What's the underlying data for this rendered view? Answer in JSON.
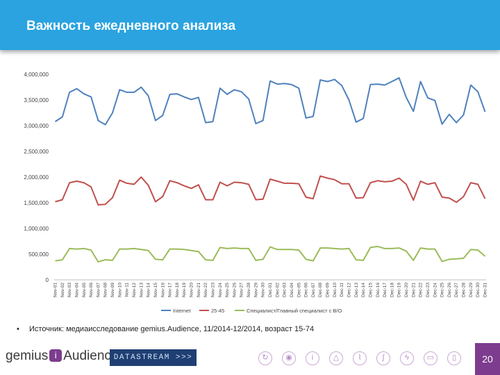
{
  "header": {
    "title": "Важность ежедневного анализа"
  },
  "chart_data": {
    "type": "line",
    "title": "",
    "xlabel": "",
    "ylabel": "",
    "ylim": [
      0,
      4000000
    ],
    "yticks": [
      0,
      500000,
      1000000,
      1500000,
      2000000,
      2500000,
      3000000,
      3500000,
      4000000
    ],
    "ytick_labels": [
      "0",
      "500,000",
      "1,000,000",
      "1,500,000",
      "2,000,000",
      "2,500,000",
      "3,000,000",
      "3,500,000",
      "4,000,000"
    ],
    "grid": false,
    "legend_position": "bottom",
    "categories": [
      "Nov-01",
      "Nov-02",
      "Nov-03",
      "Nov-04",
      "Nov-05",
      "Nov-06",
      "Nov-07",
      "Nov-08",
      "Nov-09",
      "Nov-10",
      "Nov-11",
      "Nov-12",
      "Nov-13",
      "Nov-14",
      "Nov-15",
      "Nov-16",
      "Nov-17",
      "Nov-18",
      "Nov-19",
      "Nov-20",
      "Nov-21",
      "Nov-22",
      "Nov-23",
      "Nov-24",
      "Nov-25",
      "Nov-26",
      "Nov-27",
      "Nov-28",
      "Nov-29",
      "Nov-30",
      "Dec-01",
      "Dec-02",
      "Dec-03",
      "Dec-04",
      "Dec-05",
      "Dec-06",
      "Dec-07",
      "Dec-08",
      "Dec-09",
      "Dec-10",
      "Dec-11",
      "Dec-12",
      "Dec-13",
      "Dec-14",
      "Dec-15",
      "Dec-16",
      "Dec-17",
      "Dec-18",
      "Dec-19",
      "Dec-20",
      "Dec-21",
      "Dec-22",
      "Dec-23",
      "Dec-24",
      "Dec-25",
      "Dec-26",
      "Dec-27",
      "Dec-28",
      "Dec-29",
      "Dec-30",
      "Dec-31"
    ],
    "series": [
      {
        "name": "Internet",
        "color": "#4f81bd",
        "values": [
          3080000,
          3170000,
          3650000,
          3720000,
          3620000,
          3560000,
          3100000,
          3020000,
          3250000,
          3700000,
          3650000,
          3650000,
          3750000,
          3580000,
          3100000,
          3200000,
          3610000,
          3620000,
          3560000,
          3510000,
          3550000,
          3060000,
          3080000,
          3730000,
          3610000,
          3700000,
          3660000,
          3520000,
          3040000,
          3100000,
          3870000,
          3810000,
          3820000,
          3800000,
          3730000,
          3150000,
          3180000,
          3890000,
          3860000,
          3900000,
          3780000,
          3500000,
          3070000,
          3140000,
          3800000,
          3810000,
          3790000,
          3860000,
          3930000,
          3550000,
          3280000,
          3860000,
          3540000,
          3490000,
          3030000,
          3220000,
          3060000,
          3210000,
          3790000,
          3660000,
          3270000
        ]
      },
      {
        "name": "25-45",
        "color": "#c0504d",
        "values": [
          1520000,
          1560000,
          1890000,
          1920000,
          1890000,
          1810000,
          1460000,
          1470000,
          1600000,
          1940000,
          1880000,
          1860000,
          2000000,
          1840000,
          1520000,
          1620000,
          1930000,
          1890000,
          1830000,
          1780000,
          1850000,
          1560000,
          1560000,
          1900000,
          1830000,
          1900000,
          1890000,
          1860000,
          1560000,
          1570000,
          1960000,
          1920000,
          1880000,
          1880000,
          1870000,
          1610000,
          1580000,
          2020000,
          1980000,
          1950000,
          1870000,
          1870000,
          1590000,
          1600000,
          1890000,
          1930000,
          1910000,
          1920000,
          1980000,
          1860000,
          1550000,
          1920000,
          1860000,
          1890000,
          1610000,
          1590000,
          1510000,
          1620000,
          1890000,
          1860000,
          1580000
        ]
      },
      {
        "name": "Специалист/Главный специалист с В/О",
        "color": "#9bbb59",
        "values": [
          370000,
          390000,
          610000,
          600000,
          610000,
          580000,
          350000,
          390000,
          380000,
          600000,
          600000,
          610000,
          590000,
          570000,
          400000,
          390000,
          600000,
          600000,
          590000,
          570000,
          550000,
          390000,
          380000,
          630000,
          610000,
          620000,
          610000,
          610000,
          380000,
          400000,
          640000,
          590000,
          590000,
          590000,
          580000,
          400000,
          370000,
          620000,
          620000,
          610000,
          600000,
          610000,
          390000,
          380000,
          630000,
          650000,
          610000,
          610000,
          620000,
          560000,
          380000,
          620000,
          600000,
          600000,
          360000,
          400000,
          410000,
          420000,
          590000,
          580000,
          460000
        ]
      }
    ]
  },
  "source": {
    "bullet": "•",
    "text": "Источник: медиаисследование gemius.Audience,  11/2014-12/2014, возраст 15-74"
  },
  "footer": {
    "logo_left": "gemius",
    "logo_mark": "i",
    "logo_right": "Audience",
    "datastream": "DATASTREAM >>>",
    "page_number": "20"
  }
}
